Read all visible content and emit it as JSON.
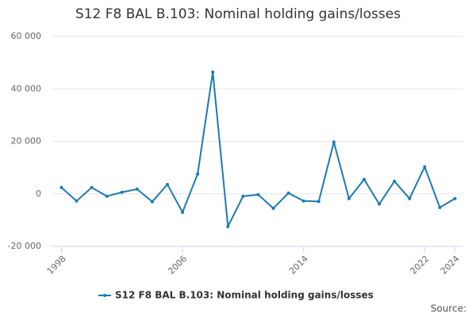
{
  "chart_data": {
    "type": "line",
    "title": "S12 F8 BAL B.103: Nominal holding gains/losses",
    "x": [
      1998,
      1999,
      2000,
      2001,
      2002,
      2003,
      2004,
      2005,
      2006,
      2007,
      2008,
      2009,
      2010,
      2011,
      2012,
      2013,
      2014,
      2015,
      2016,
      2017,
      2018,
      2019,
      2020,
      2021,
      2022,
      2023,
      2024
    ],
    "series": [
      {
        "name": "S12 F8 BAL B.103: Nominal holding gains/losses",
        "color": "#1a7ab5",
        "values": [
          2400,
          -2700,
          2400,
          -900,
          600,
          1800,
          -3000,
          3600,
          -7000,
          7600,
          46400,
          -12400,
          -900,
          -300,
          -5500,
          300,
          -2700,
          -2900,
          19700,
          -1800,
          5500,
          -3900,
          4800,
          -1800,
          10300,
          -5200,
          -1800
        ]
      }
    ],
    "xlim": [
      1997.4,
      2024.5
    ],
    "xticks": [
      1998,
      2006,
      2014,
      2022,
      2024
    ],
    "ylim": [
      -20000,
      60000
    ],
    "yticks": [
      {
        "value": -20000,
        "label": "-20 000"
      },
      {
        "value": 0,
        "label": "0"
      },
      {
        "value": 20000,
        "label": "20 000"
      },
      {
        "value": 40000,
        "label": "40 000"
      },
      {
        "value": 60000,
        "label": "60 000"
      }
    ],
    "grid": true,
    "source": "Source:"
  }
}
